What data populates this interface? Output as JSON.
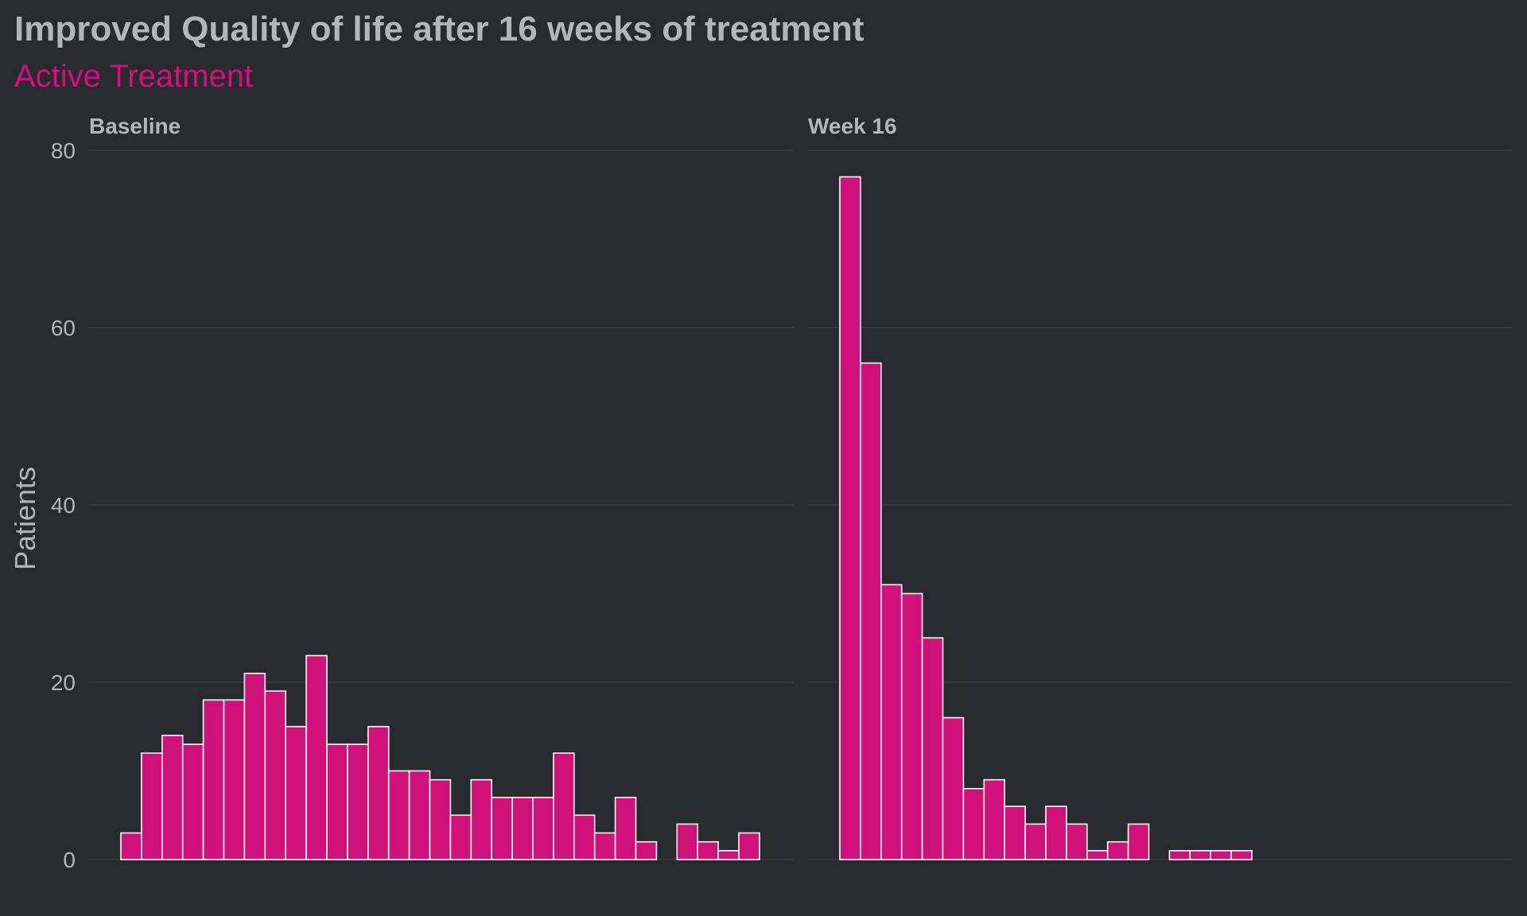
{
  "header": {
    "title": "Improved Quality of life after 16 weeks of treatment",
    "subtitle": "Active Treatment"
  },
  "colors": {
    "background": "#292a2f",
    "bar_fill": "#d0117a",
    "bar_stroke": "#ffffff",
    "text": "#b4b4bd",
    "grid": "#3c3d43"
  },
  "chart_data": {
    "type": "bar",
    "ylabel": "Patients",
    "xlabel": "",
    "ylim": [
      0,
      80
    ],
    "yticks": [
      "0",
      "20",
      "40",
      "60",
      "80"
    ],
    "grid": "horizontal",
    "legend": "none",
    "panels": [
      {
        "name": "Baseline",
        "values": [
          3,
          12,
          14,
          13,
          18,
          18,
          21,
          19,
          15,
          23,
          13,
          13,
          15,
          10,
          10,
          9,
          5,
          9,
          7,
          7,
          7,
          12,
          5,
          3,
          7,
          2,
          0,
          4,
          2,
          1,
          3
        ]
      },
      {
        "name": "Week 16",
        "values": [
          77,
          56,
          31,
          30,
          25,
          16,
          8,
          9,
          6,
          4,
          6,
          4,
          1,
          2,
          4,
          0,
          1,
          1,
          1,
          1,
          0,
          0,
          0,
          0,
          0,
          0,
          0,
          0,
          0,
          0,
          0
        ]
      }
    ]
  }
}
